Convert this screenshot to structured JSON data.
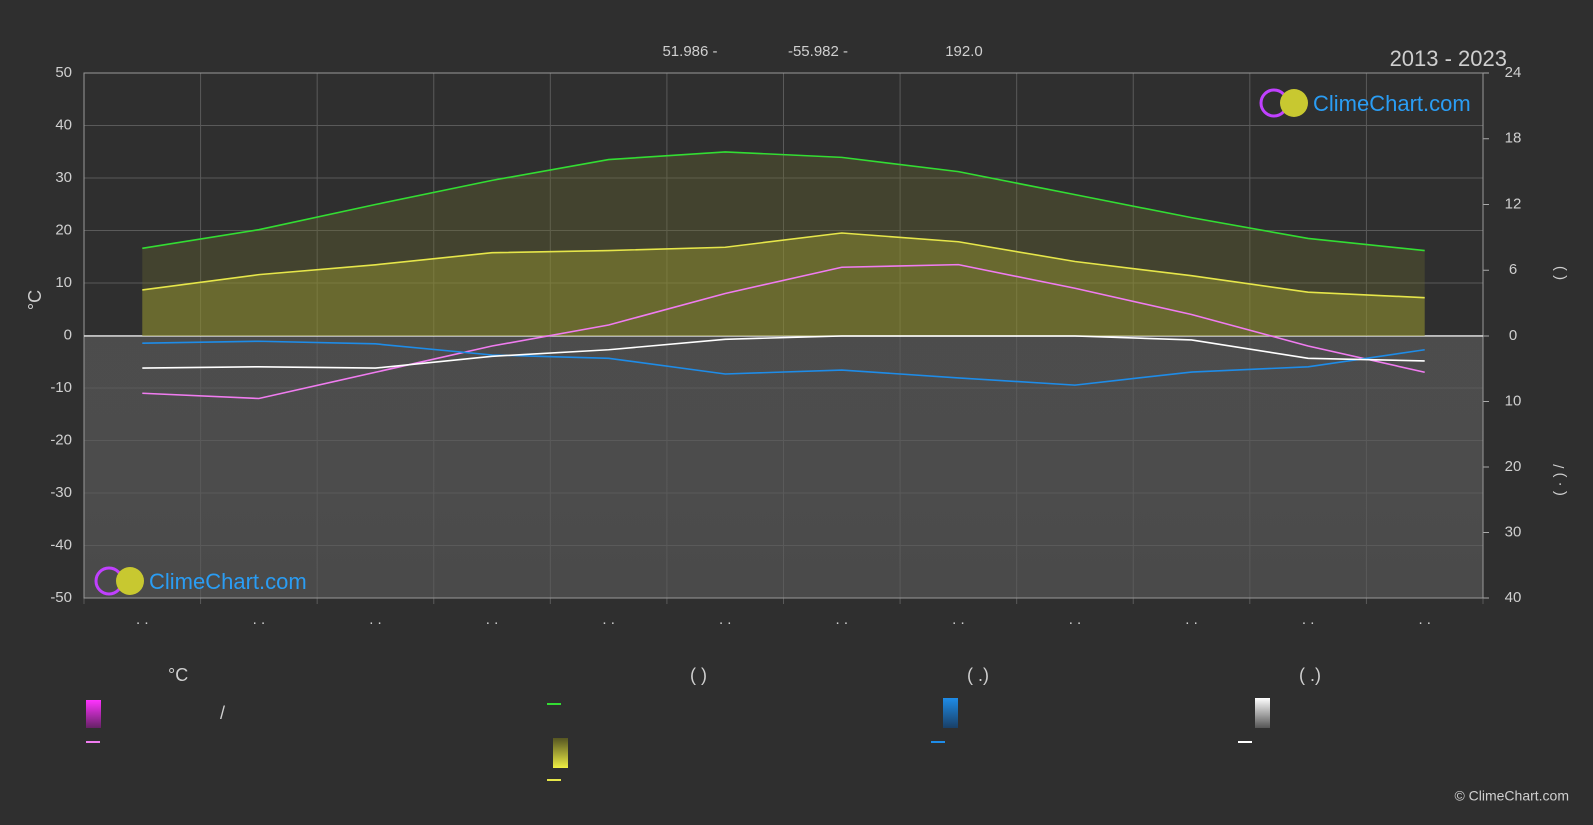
{
  "header": {
    "latitude": "51.986 -",
    "longitude": "-55.982 -",
    "elevation": "192.0",
    "period": "2013 - 2023",
    "brand": "ClimeChart.com",
    "copyright": "© ClimeChart.com"
  },
  "legend": {
    "headers": [
      "°C",
      "(          )",
      "(   .)",
      "(   .)"
    ],
    "note": "/"
  },
  "chart_data": {
    "type": "line",
    "y_label": "°C",
    "y2_label": "(          )",
    "y3_label": "(  ·  )     /",
    "categories": [
      ". .",
      ". .",
      ". .",
      ". .",
      ". .",
      ". .",
      ". .",
      ". .",
      ". .",
      ". .",
      ". .",
      ". ."
    ],
    "ylim": [
      -50,
      50
    ],
    "yticks": [
      -50,
      -40,
      -30,
      -20,
      -10,
      0,
      10,
      20,
      30,
      40,
      50
    ],
    "y2lim": [
      0,
      24
    ],
    "y2ticks": [
      0,
      6,
      12,
      18,
      24
    ],
    "y3lim": [
      0,
      40
    ],
    "y3ticks": [
      10,
      20,
      30,
      40
    ],
    "grid": true,
    "series": [
      {
        "color": "#33dd33",
        "axis": "y2",
        "values": [
          8.0,
          9.7,
          12.0,
          14.2,
          16.1,
          16.8,
          16.3,
          15.0,
          12.9,
          10.8,
          8.9,
          7.8
        ]
      },
      {
        "color": "#e6e64a",
        "axis": "y2",
        "values": [
          4.2,
          5.6,
          6.5,
          7.6,
          7.8,
          8.1,
          9.4,
          8.6,
          6.8,
          5.5,
          4.0,
          3.5
        ]
      },
      {
        "color": "#f07cf0",
        "axis": "y",
        "values": [
          -11,
          -12,
          -7,
          -2,
          2,
          8,
          13,
          13.5,
          9,
          4,
          -2,
          -7
        ]
      },
      {
        "color": "#1e8ce8",
        "axis": "y3",
        "values": [
          1.1,
          0.8,
          1.2,
          2.9,
          3.4,
          5.8,
          5.2,
          6.4,
          7.5,
          5.5,
          4.7,
          2.1
        ]
      },
      {
        "color": "#ffffff",
        "axis": "y3",
        "values": [
          4.9,
          4.7,
          4.9,
          3.1,
          2.1,
          0.5,
          0,
          0,
          0,
          0.6,
          3.4,
          3.8
        ]
      }
    ]
  }
}
